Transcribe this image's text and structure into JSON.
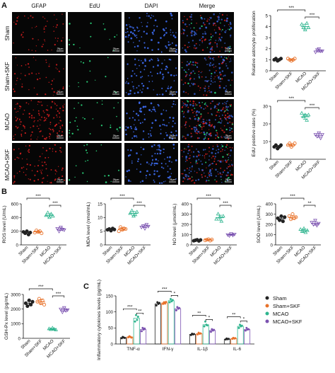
{
  "panels": {
    "a": "A",
    "b": "B",
    "c": "C"
  },
  "microscopy": {
    "columns": [
      "GFAP",
      "EdU",
      "DAPI",
      "Merge"
    ],
    "rows": [
      "Sham",
      "Sham+SKF",
      "MCAO",
      "MCAO+SKF"
    ],
    "scale_label": "25μm",
    "marker_density": [
      0.3,
      0.3,
      1.0,
      0.6
    ]
  },
  "colors": {
    "Sham": "#222222",
    "Sham+SKF": "#e8722a",
    "MCAO": "#2fb58f",
    "MCAO+SKF": "#7b52b0",
    "gfap": "#e02020",
    "edu": "#2ad47a",
    "dapi": "#3d6cf0"
  },
  "legend": [
    "Sham",
    "Sham+SKF",
    "MCAO",
    "MCAO+SKF"
  ],
  "chart_data": [
    {
      "id": "prolif",
      "type": "scatter",
      "ylabel": "Relative astrocyte proliferation",
      "categories": [
        "Sham",
        "Sham+SKF",
        "MCAO",
        "MCAO+SKF"
      ],
      "ylim": [
        0,
        5
      ],
      "yticks": [
        0,
        1,
        2,
        3,
        4,
        5
      ],
      "values": [
        [
          1.0,
          1.1,
          0.9,
          1.0,
          1.1
        ],
        [
          1.1,
          1.0,
          0.9,
          1.0,
          1.1
        ],
        [
          4.2,
          3.9,
          3.7,
          4.3,
          3.9
        ],
        [
          1.7,
          1.9,
          2.0,
          1.8,
          1.8
        ]
      ],
      "means": [
        1.0,
        1.0,
        4.0,
        1.8
      ],
      "sig": [
        {
          "from": 0,
          "to": 2,
          "label": "***"
        },
        {
          "from": 2,
          "to": 3,
          "label": "***"
        }
      ]
    },
    {
      "id": "edu",
      "type": "scatter",
      "ylabel": "EdU positive rates (%)",
      "categories": [
        "Sham",
        "Sham+SKF",
        "MCAO",
        "MCAO+SKF"
      ],
      "ylim": [
        0,
        30
      ],
      "yticks": [
        0,
        10,
        20,
        30
      ],
      "values": [
        [
          7,
          8,
          6,
          7,
          8
        ],
        [
          8,
          9,
          7,
          8,
          9
        ],
        [
          26,
          24,
          25,
          22,
          25
        ],
        [
          14,
          13,
          15,
          12,
          14
        ]
      ],
      "means": [
        7,
        8,
        24,
        13.5
      ],
      "sig": [
        {
          "from": 0,
          "to": 2,
          "label": "***"
        },
        {
          "from": 2,
          "to": 3,
          "label": "***"
        }
      ]
    },
    {
      "id": "ros",
      "type": "scatter",
      "ylabel": "ROS level (U/mL)",
      "categories": [
        "Sham",
        "Sham+SKF",
        "MCAO",
        "MCAO+SKF"
      ],
      "ylim": [
        0,
        600
      ],
      "yticks": [
        0,
        200,
        400,
        600
      ],
      "values": [
        [
          190,
          170,
          200,
          150,
          180
        ],
        [
          180,
          210,
          190,
          200,
          170
        ],
        [
          430,
          470,
          400,
          450,
          420
        ],
        [
          240,
          200,
          260,
          230,
          220
        ]
      ],
      "means": [
        180,
        190,
        430,
        230
      ],
      "sig": [
        {
          "from": 0,
          "to": 2,
          "label": "***"
        },
        {
          "from": 2,
          "to": 3,
          "label": "***"
        }
      ]
    },
    {
      "id": "mda",
      "type": "scatter",
      "ylabel": "MDA level (nmol/mL)",
      "categories": [
        "Sham",
        "Sham+SKF",
        "MCAO",
        "MCAO+SKF"
      ],
      "ylim": [
        0,
        15
      ],
      "yticks": [
        0,
        5,
        10,
        15
      ],
      "values": [
        [
          5.5,
          5.8,
          5.2,
          6.0,
          5.6
        ],
        [
          5.0,
          6.5,
          5.5,
          6.0,
          5.8
        ],
        [
          11.5,
          12.5,
          10.5,
          11.0,
          12.0
        ],
        [
          6.5,
          7.0,
          6.0,
          7.5,
          6.8
        ]
      ],
      "means": [
        5.6,
        5.8,
        11.5,
        6.8
      ],
      "sig": [
        {
          "from": 0,
          "to": 2,
          "label": "***"
        },
        {
          "from": 2,
          "to": 3,
          "label": "***"
        }
      ]
    },
    {
      "id": "no",
      "type": "scatter",
      "ylabel": "NO level (μmol/mL)",
      "categories": [
        "Sham",
        "Sham+SKF",
        "MCAO",
        "MCAO+SKF"
      ],
      "ylim": [
        0,
        400
      ],
      "yticks": [
        0,
        100,
        200,
        300,
        400
      ],
      "values": [
        [
          40,
          45,
          50,
          38,
          48
        ],
        [
          45,
          50,
          55,
          42,
          52
        ],
        [
          250,
          300,
          270,
          230,
          280
        ],
        [
          100,
          90,
          110,
          95,
          105
        ]
      ],
      "means": [
        45,
        50,
        265,
        100
      ],
      "sig": [
        {
          "from": 0,
          "to": 2,
          "label": "***"
        },
        {
          "from": 2,
          "to": 3,
          "label": "***"
        }
      ]
    },
    {
      "id": "sod",
      "type": "scatter",
      "ylabel": "SOD level (U/mL)",
      "categories": [
        "Sham",
        "Sham+SKF",
        "MCAO",
        "MCAO+SKF"
      ],
      "ylim": [
        0,
        400
      ],
      "yticks": [
        0,
        100,
        200,
        300,
        400
      ],
      "values": [
        [
          260,
          240,
          280,
          230,
          270
        ],
        [
          280,
          250,
          300,
          260,
          270
        ],
        [
          150,
          130,
          160,
          120,
          140
        ],
        [
          220,
          200,
          240,
          190,
          210
        ]
      ],
      "means": [
        255,
        270,
        140,
        210
      ],
      "sig": [
        {
          "from": 0,
          "to": 2,
          "label": "***"
        },
        {
          "from": 2,
          "to": 3,
          "label": "**"
        }
      ]
    },
    {
      "id": "gsh",
      "type": "scatter",
      "ylabel": "GSH-Px level (pg/mL)",
      "categories": [
        "Sham",
        "Sham+SKF",
        "MCAO",
        "MCAO+SKF"
      ],
      "ylim": [
        0,
        3000
      ],
      "yticks": [
        0,
        1000,
        2000,
        3000
      ],
      "values": [
        [
          2400,
          2200,
          2600,
          2300,
          2500
        ],
        [
          2500,
          2700,
          2400,
          2600,
          2300
        ],
        [
          650,
          600,
          700,
          620,
          580
        ],
        [
          2000,
          1800,
          2100,
          1900,
          1950
        ]
      ],
      "means": [
        2400,
        2500,
        630,
        1950
      ],
      "sig": [
        {
          "from": 0,
          "to": 2,
          "label": "***"
        },
        {
          "from": 2,
          "to": 3,
          "label": "***"
        }
      ]
    },
    {
      "id": "cyto",
      "type": "bar",
      "ylabel": "Inflammatory cytokines levels (pg/mL)",
      "categories": [
        "TNF-α",
        "IFN-γ",
        "IL-1β",
        "IL-6"
      ],
      "series_order": [
        "Sham",
        "Sham+SKF",
        "MCAO",
        "MCAO+SKF"
      ],
      "ylim": [
        0,
        150
      ],
      "yticks": [
        0,
        50,
        100,
        150
      ],
      "means": [
        [
          20,
          22,
          80,
          45
        ],
        [
          125,
          128,
          135,
          110
        ],
        [
          30,
          32,
          60,
          42
        ],
        [
          15,
          17,
          55,
          45
        ]
      ],
      "points": [
        [
          [
            18,
            22,
            20,
            19
          ],
          [
            21,
            24,
            22,
            20
          ],
          [
            70,
            90,
            75,
            85
          ],
          [
            40,
            50,
            45,
            48
          ]
        ],
        [
          [
            120,
            130,
            125,
            128
          ],
          [
            125,
            130,
            126,
            131
          ],
          [
            130,
            140,
            133,
            137
          ],
          [
            105,
            115,
            110,
            112
          ]
        ],
        [
          [
            28,
            32,
            30,
            31
          ],
          [
            30,
            35,
            32,
            33
          ],
          [
            55,
            70,
            60,
            58
          ],
          [
            38,
            46,
            42,
            44
          ]
        ],
        [
          [
            14,
            17,
            15,
            16
          ],
          [
            16,
            19,
            17,
            18
          ],
          [
            50,
            60,
            55,
            57
          ],
          [
            42,
            50,
            45,
            46
          ]
        ]
      ],
      "sig": [
        [
          {
            "from": 0,
            "to": 2,
            "label": "***"
          },
          {
            "from": 2,
            "to": 3,
            "label": "**"
          }
        ],
        [
          {
            "from": 0,
            "to": 2,
            "label": "***"
          },
          {
            "from": 2,
            "to": 3,
            "label": "*"
          }
        ],
        [
          {
            "from": 0,
            "to": 2,
            "label": "**"
          },
          {
            "from": 2,
            "to": 3,
            "label": "*"
          }
        ],
        [
          {
            "from": 0,
            "to": 2,
            "label": "**"
          },
          {
            "from": 2,
            "to": 3,
            "label": "*"
          }
        ]
      ]
    }
  ]
}
